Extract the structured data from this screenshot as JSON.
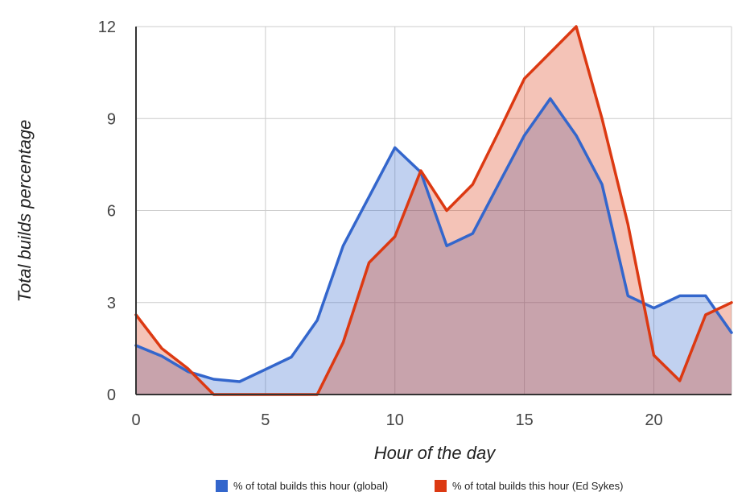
{
  "chart_data": {
    "type": "area",
    "title": "",
    "xlabel": "Hour of the day",
    "ylabel": "Total builds percentage",
    "xlim": [
      0,
      23
    ],
    "ylim": [
      0,
      12
    ],
    "x_ticks": [
      "0",
      "5",
      "10",
      "15",
      "20"
    ],
    "y_ticks": [
      "0",
      "3",
      "6",
      "9",
      "12"
    ],
    "grid": true,
    "legend_position": "bottom",
    "x": [
      0,
      1,
      2,
      3,
      4,
      5,
      6,
      7,
      8,
      9,
      10,
      11,
      12,
      13,
      14,
      15,
      16,
      17,
      18,
      19,
      20,
      21,
      22,
      23
    ],
    "series": [
      {
        "name": "% of total builds this hour (global)",
        "color": "#3366cc",
        "values": [
          1.6,
          1.25,
          0.75,
          0.5,
          0.42,
          0.82,
          1.22,
          2.42,
          4.85,
          6.45,
          8.05,
          7.25,
          4.85,
          5.25,
          6.85,
          8.45,
          9.65,
          8.45,
          6.85,
          3.22,
          2.82,
          3.22,
          3.22,
          2.02
        ]
      },
      {
        "name": "% of total builds this hour (Ed Sykes)",
        "color": "#dc3912",
        "values": [
          2.6,
          1.5,
          0.85,
          0.0,
          0.0,
          0.0,
          0.0,
          0.0,
          1.7,
          4.3,
          5.15,
          7.3,
          6.0,
          6.85,
          8.55,
          10.3,
          11.15,
          12.0,
          9.0,
          5.55,
          1.28,
          0.45,
          2.6,
          3.0
        ]
      }
    ]
  }
}
